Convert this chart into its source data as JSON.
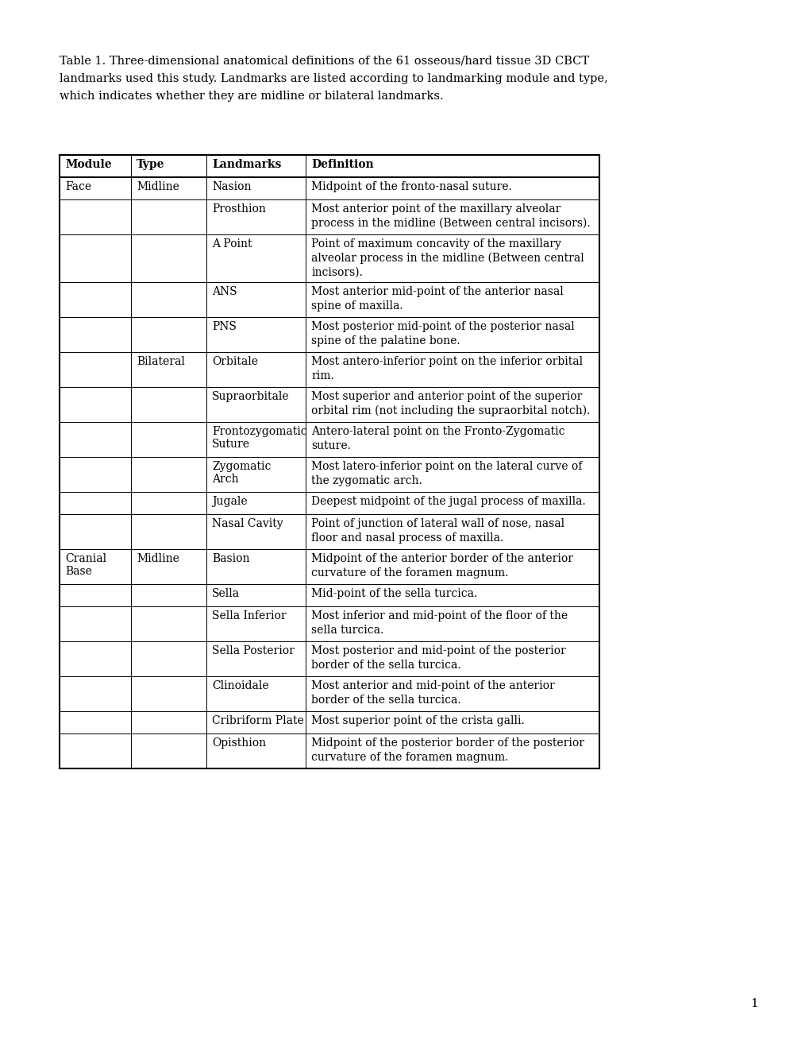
{
  "caption_line1": "Table 1. Three-dimensional anatomical definitions of the 61 osseous/hard tissue 3D CBCT",
  "caption_line2": "landmarks used this study. Landmarks are listed according to landmarking module and type,",
  "caption_line3": "which indicates whether they are midline or bilateral landmarks.",
  "headers": [
    "Module",
    "Type",
    "Landmarks",
    "Definition"
  ],
  "rows": [
    {
      "module": "Face",
      "type": "Midline",
      "landmark": "Nasion",
      "definition": [
        "Midpoint of the fronto-nasal suture."
      ]
    },
    {
      "module": "",
      "type": "",
      "landmark": "Prosthion",
      "definition": [
        "Most anterior point of the maxillary alveolar",
        "process in the midline (Between central incisors)."
      ]
    },
    {
      "module": "",
      "type": "",
      "landmark": "A Point",
      "definition": [
        "Point of maximum concavity of the maxillary",
        "alveolar process in the midline (Between central",
        "incisors)."
      ]
    },
    {
      "module": "",
      "type": "",
      "landmark": "ANS",
      "definition": [
        "Most anterior mid-point of the anterior nasal",
        "spine of maxilla."
      ]
    },
    {
      "module": "",
      "type": "",
      "landmark": "PNS",
      "definition": [
        "Most posterior mid-point of the posterior nasal",
        "spine of the palatine bone."
      ]
    },
    {
      "module": "",
      "type": "Bilateral",
      "landmark": "Orbitale",
      "definition": [
        "Most antero-inferior point on the inferior orbital",
        "rim."
      ]
    },
    {
      "module": "",
      "type": "",
      "landmark": "Supraorbitale",
      "definition": [
        "Most superior and anterior point of the superior",
        "orbital rim (not including the supraorbital notch)."
      ]
    },
    {
      "module": "",
      "type": "",
      "landmark": "Frontozygomatic\nSuture",
      "definition": [
        "Antero-lateral point on the Fronto-Zygomatic",
        "suture."
      ]
    },
    {
      "module": "",
      "type": "",
      "landmark": "Zygomatic\nArch",
      "definition": [
        "Most latero-inferior point on the lateral curve of",
        "the zygomatic arch."
      ]
    },
    {
      "module": "",
      "type": "",
      "landmark": "Jugale",
      "definition": [
        "Deepest midpoint of the jugal process of maxilla."
      ]
    },
    {
      "module": "",
      "type": "",
      "landmark": "Nasal Cavity",
      "definition": [
        "Point of junction of lateral wall of nose, nasal",
        "floor and nasal process of maxilla."
      ]
    },
    {
      "module": "Cranial\nBase",
      "type": "Midline",
      "landmark": "Basion",
      "definition": [
        "Midpoint of the anterior border of the anterior",
        "curvature of the foramen magnum."
      ]
    },
    {
      "module": "",
      "type": "",
      "landmark": "Sella",
      "definition": [
        "Mid-point of the sella turcica."
      ]
    },
    {
      "module": "",
      "type": "",
      "landmark": "Sella Inferior",
      "definition": [
        "Most inferior and mid-point of the floor of the",
        "sella turcica."
      ]
    },
    {
      "module": "",
      "type": "",
      "landmark": "Sella Posterior",
      "definition": [
        "Most posterior and mid-point of the posterior",
        "border of the sella turcica."
      ]
    },
    {
      "module": "",
      "type": "",
      "landmark": "Clinoidale",
      "definition": [
        "Most anterior and mid-point of the anterior",
        "border of the sella turcica."
      ]
    },
    {
      "module": "",
      "type": "",
      "landmark": "Cribriform Plate",
      "definition": [
        "Most superior point of the crista galli."
      ]
    },
    {
      "module": "",
      "type": "",
      "landmark": "Opisthion",
      "definition": [
        "Midpoint of the posterior border of the posterior",
        "curvature of the foramen magnum."
      ]
    }
  ],
  "background_color": "#ffffff",
  "text_color": "#000000",
  "font_size": 10,
  "header_font_size": 10,
  "caption_font_size": 10.5
}
